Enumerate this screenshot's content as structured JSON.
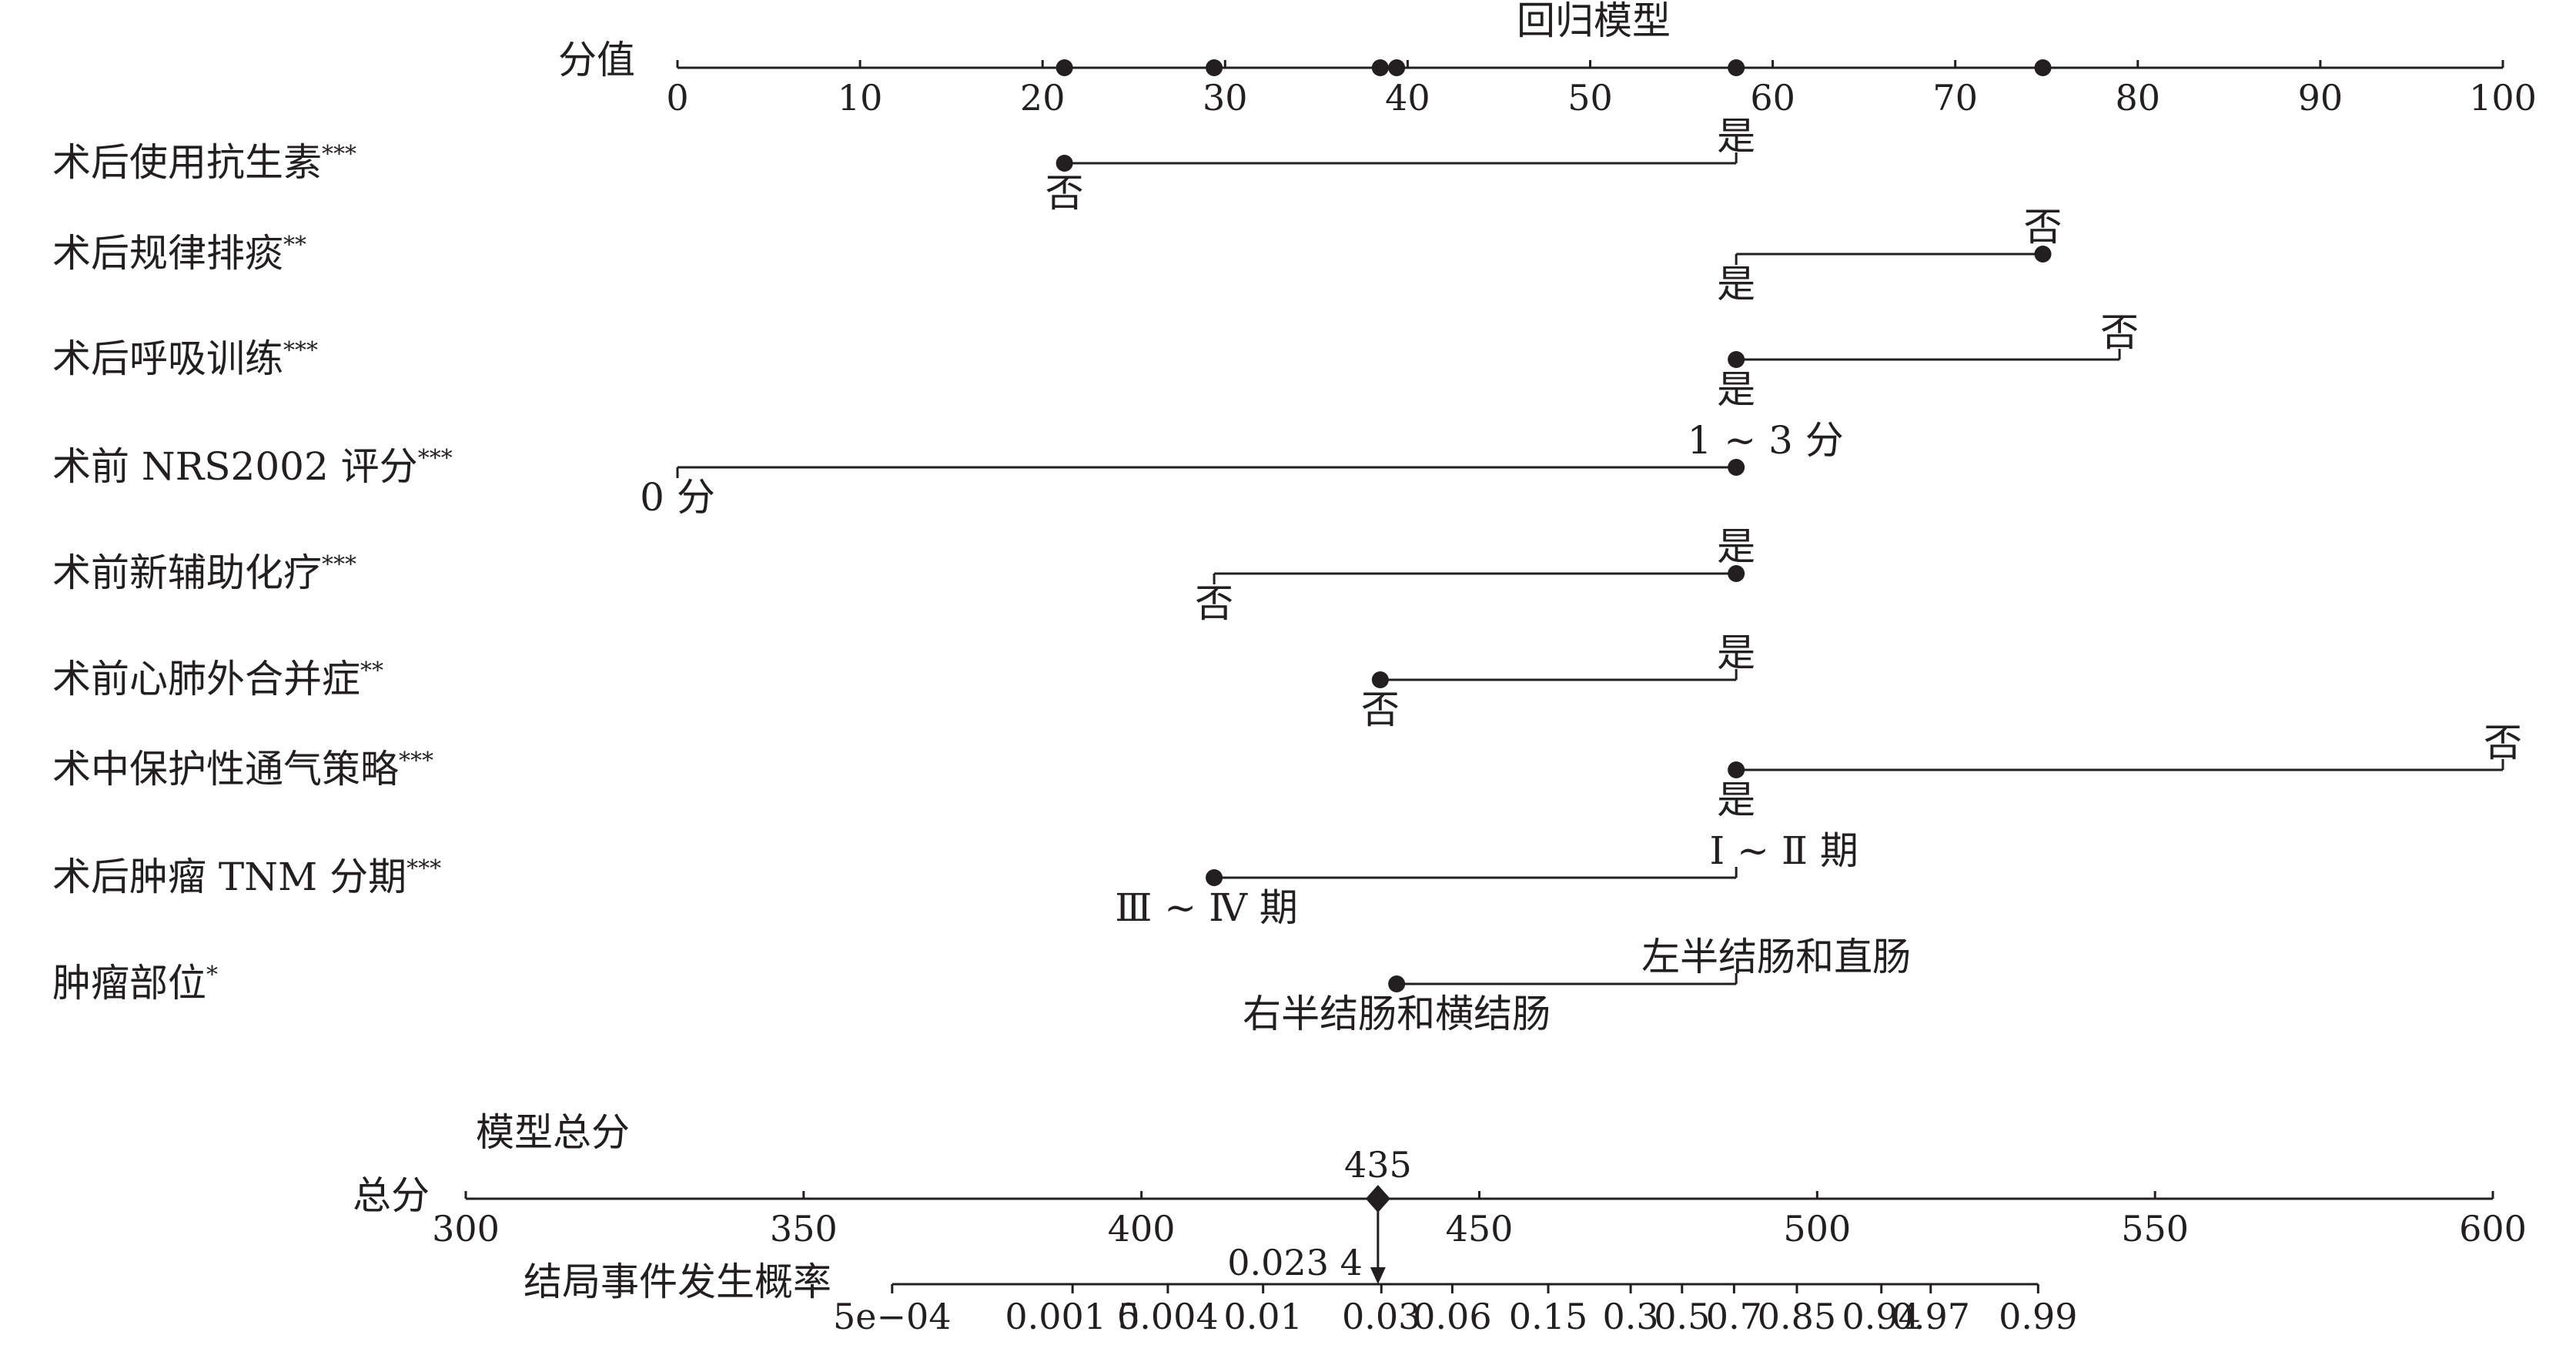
{
  "chart_data": {
    "type": "nomogram",
    "title": "回归模型",
    "points_axis": {
      "label": "分值",
      "ticks": [
        0,
        10,
        20,
        30,
        40,
        50,
        60,
        70,
        80,
        90,
        100
      ],
      "markers": [
        21.2,
        29.4,
        38.5,
        39.4,
        58.0,
        74.8
      ]
    },
    "variables": [
      {
        "name": "术后使用抗生素",
        "sig": "***",
        "levels": [
          {
            "label": "否",
            "points": 21.2,
            "marker": true,
            "label_pos": "below"
          },
          {
            "label": "是",
            "points": 58.0,
            "marker": false,
            "label_pos": "above"
          }
        ]
      },
      {
        "name": "术后规律排痰",
        "sig": "**",
        "levels": [
          {
            "label": "是",
            "points": 58.0,
            "marker": false,
            "label_pos": "below"
          },
          {
            "label": "否",
            "points": 74.8,
            "marker": true,
            "label_pos": "above"
          }
        ]
      },
      {
        "name": "术后呼吸训练",
        "sig": "***",
        "levels": [
          {
            "label": "是",
            "points": 58.0,
            "marker": true,
            "label_pos": "below"
          },
          {
            "label": "否",
            "points": 79.0,
            "marker": false,
            "label_pos": "above"
          }
        ]
      },
      {
        "name": "术前 NRS2002 评分",
        "sig": "***",
        "levels": [
          {
            "label": "0 分",
            "points": 0,
            "marker": false,
            "label_pos": "below"
          },
          {
            "label": "1 ~ 3 分",
            "points": 58.0,
            "marker": true,
            "label_pos": "above"
          }
        ]
      },
      {
        "name": "术前新辅助化疗",
        "sig": "***",
        "levels": [
          {
            "label": "否",
            "points": 29.4,
            "marker": false,
            "label_pos": "below"
          },
          {
            "label": "是",
            "points": 58.0,
            "marker": true,
            "label_pos": "above"
          }
        ]
      },
      {
        "name": "术前心肺外合并症",
        "sig": "**",
        "levels": [
          {
            "label": "否",
            "points": 38.5,
            "marker": true,
            "label_pos": "below"
          },
          {
            "label": "是",
            "points": 58.0,
            "marker": false,
            "label_pos": "above"
          }
        ]
      },
      {
        "name": "术中保护性通气策略",
        "sig": "***",
        "levels": [
          {
            "label": "是",
            "points": 58.0,
            "marker": true,
            "label_pos": "below"
          },
          {
            "label": "否",
            "points": 100,
            "marker": false,
            "label_pos": "above"
          }
        ]
      },
      {
        "name": "术后肿瘤 TNM 分期",
        "sig": "***",
        "levels": [
          {
            "label": "Ⅲ ~ Ⅳ 期",
            "points": 29.4,
            "marker": true,
            "label_pos": "below"
          },
          {
            "label": "Ⅰ ~ Ⅱ 期",
            "points": 58.0,
            "marker": false,
            "label_pos": "above"
          }
        ]
      },
      {
        "name": "肿瘤部位",
        "sig": "*",
        "levels": [
          {
            "label": "右半结肠和横结肠",
            "points": 39.4,
            "marker": true,
            "label_pos": "below"
          },
          {
            "label": "左半结肠和直肠",
            "points": 58.0,
            "marker": false,
            "label_pos": "above"
          }
        ]
      }
    ],
    "total_section_label": "模型总分",
    "total_axis": {
      "label": "总分",
      "ticks": [
        300,
        350,
        400,
        450,
        500,
        550,
        600
      ],
      "value": 435,
      "value_label": "435"
    },
    "probability_axis": {
      "label": "结局事件发生概率",
      "ticks": [
        {
          "label": "5e−04",
          "total": 363.1
        },
        {
          "label": "0.001 5",
          "total": 389.8
        },
        {
          "label": "0.004",
          "total": 403.9
        },
        {
          "label": "0.01",
          "total": 418.0
        },
        {
          "label": "0.03",
          "total": 435.5
        },
        {
          "label": "0.06",
          "total": 446.0
        },
        {
          "label": "0.15",
          "total": 460.2
        },
        {
          "label": "0.3",
          "total": 472.4
        },
        {
          "label": "0.5",
          "total": 480.0
        },
        {
          "label": "0.7",
          "total": 487.7
        },
        {
          "label": "0.85",
          "total": 497.0
        },
        {
          "label": "0.94",
          "total": 509.5
        },
        {
          "label": "0.97",
          "total": 516.8
        },
        {
          "label": "0.99",
          "total": 532.7
        }
      ],
      "range_total": [
        363.1,
        532.7
      ],
      "value": 0.0234,
      "value_label": "0.023 4"
    }
  }
}
